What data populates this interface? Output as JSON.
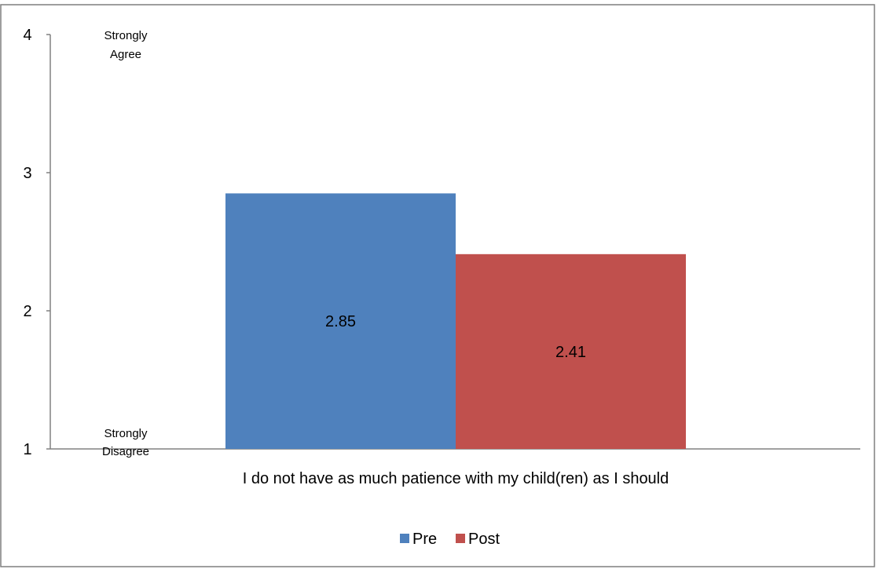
{
  "chart_data": {
    "type": "bar",
    "categories": [
      "I do not have as much patience with my child(ren) as I should"
    ],
    "series": [
      {
        "name": "Pre",
        "values": [
          2.85
        ],
        "color": "#4f81bd"
      },
      {
        "name": "Post",
        "values": [
          2.41
        ],
        "color": "#c0504d"
      }
    ],
    "data_labels": [
      "2.85",
      "2.41"
    ],
    "ylim": [
      1,
      4
    ],
    "yticks": [
      "1",
      "2",
      "3",
      "4"
    ],
    "scale_labels": {
      "top": [
        "Strongly",
        "Agree"
      ],
      "bottom": [
        "Strongly",
        "Disagree"
      ]
    },
    "legend_position": "bottom",
    "grid": false
  }
}
